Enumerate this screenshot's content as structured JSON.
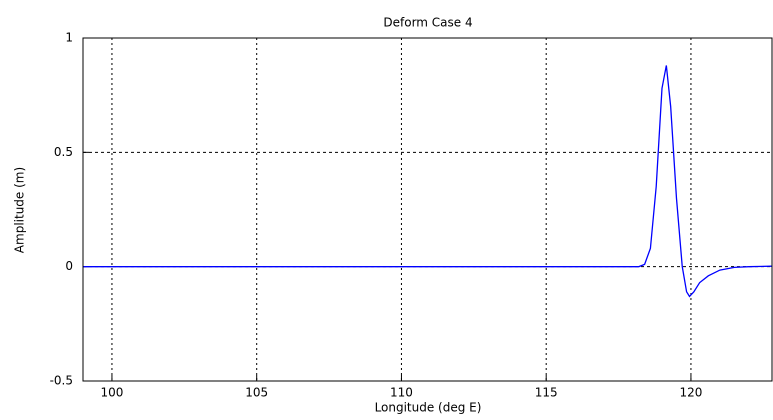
{
  "chart_data": {
    "type": "line",
    "title": "Deform Case 4",
    "x_label": "Longitude (deg E)",
    "y_label": "Amplitude (m)",
    "x": [
      99,
      118.2,
      118.4,
      118.6,
      118.8,
      119.0,
      119.15,
      119.3,
      119.5,
      119.7,
      119.85,
      119.95,
      120.1,
      120.3,
      120.6,
      121.0,
      121.5,
      122.0,
      122.8
    ],
    "series": [
      {
        "name": "Amplitude",
        "color": "#0000ff",
        "values": [
          0,
          0,
          0.01,
          0.08,
          0.35,
          0.78,
          0.88,
          0.7,
          0.3,
          0.0,
          -0.11,
          -0.13,
          -0.11,
          -0.07,
          -0.04,
          -0.015,
          -0.003,
          0,
          0.002
        ]
      }
    ],
    "xlim": [
      99,
      122.8
    ],
    "xticks": [
      100,
      105,
      110,
      115,
      120
    ],
    "ylim": [
      -0.5,
      1
    ],
    "yticks": [
      -0.5,
      0,
      0.5,
      1
    ],
    "grid": true
  }
}
